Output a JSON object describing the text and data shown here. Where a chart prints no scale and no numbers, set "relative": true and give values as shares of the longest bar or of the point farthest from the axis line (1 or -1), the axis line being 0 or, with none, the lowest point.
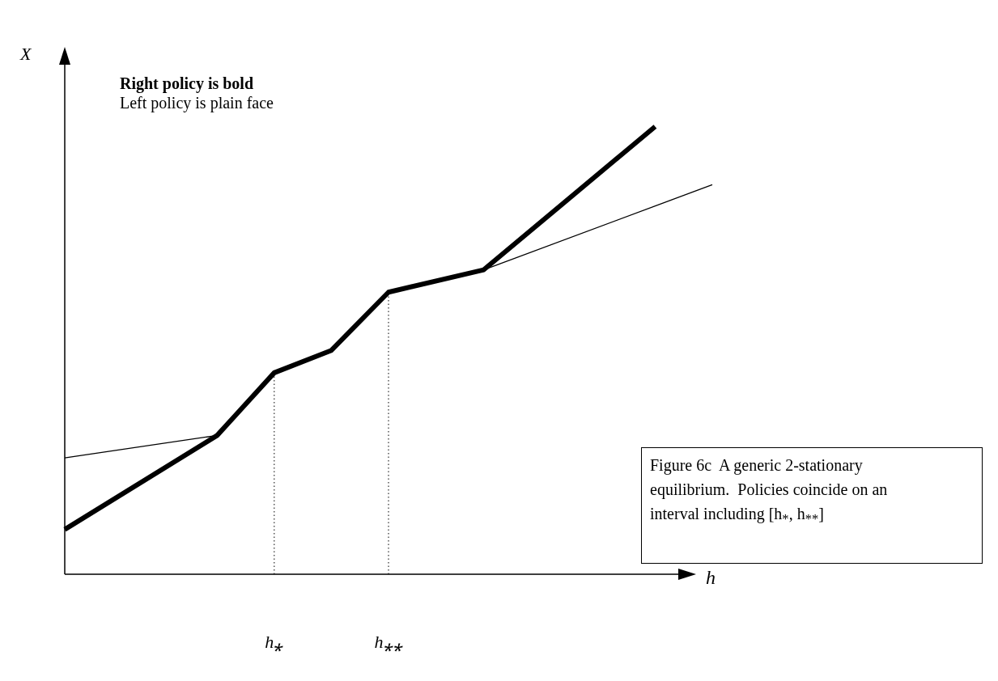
{
  "chart_data": {
    "type": "line",
    "relative": true,
    "xlabel": "h",
    "ylabel": "X",
    "tick_labels": "x",
    "legend": false,
    "marker": "none",
    "categories": [
      null,
      null,
      null,
      null,
      null,
      null,
      null,
      null,
      null,
      null,
      null,
      "h⁎",
      null,
      null,
      null,
      null,
      null,
      "h⁎⁎",
      null,
      null,
      null,
      null,
      null,
      null,
      null,
      null,
      null,
      null,
      null,
      null,
      null,
      null,
      null,
      null,
      null
    ],
    "annotations": [
      "Right policy is bold",
      "Left policy is plain face",
      "Figure 6c  A generic 2-stationary equilibrium.  Policies coincide on an interval including [h$_{*}$, h$_{**}$]"
    ],
    "ref_lines": [
      {
        "axis": "x",
        "value": "h⁎",
        "line_style": "dotted"
      },
      {
        "axis": "x",
        "value": "h⁎⁎",
        "line_style": "dotted"
      }
    ],
    "series": [
      {
        "color": "#000000",
        "values": [
          0.1,
          null,
          null,
          null,
          null,
          null,
          null,
          null,
          0.31,
          null,
          null,
          0.45,
          null,
          null,
          0.5,
          null,
          null,
          0.63,
          null,
          null,
          null,
          null,
          0.68,
          null,
          null,
          null,
          null,
          null,
          null,
          null,
          null,
          1,
          null,
          null,
          null
        ]
      },
      {
        "color": "#000000",
        "values": [
          0.26,
          null,
          null,
          null,
          null,
          null,
          null,
          null,
          0.31,
          null,
          null,
          null,
          null,
          null,
          null,
          null,
          null,
          null,
          null,
          null,
          null,
          null,
          null,
          null,
          null,
          null,
          null,
          null,
          null,
          null,
          null,
          null,
          null,
          null,
          null
        ]
      },
      {
        "color": "#000000",
        "values": [
          null,
          null,
          null,
          null,
          null,
          null,
          null,
          null,
          null,
          null,
          null,
          null,
          null,
          null,
          null,
          null,
          null,
          null,
          null,
          null,
          null,
          null,
          0.68,
          null,
          null,
          null,
          null,
          null,
          null,
          null,
          null,
          null,
          null,
          null,
          0.87
        ]
      }
    ]
  }
}
